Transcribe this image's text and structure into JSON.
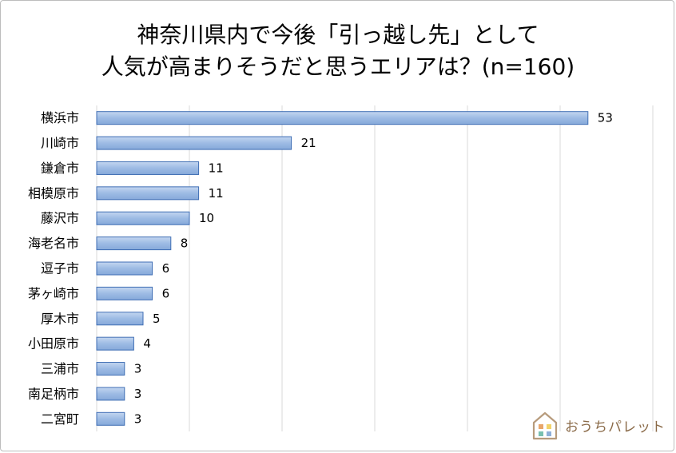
{
  "chart_data": {
    "type": "bar",
    "orientation": "horizontal",
    "title_line1": "神奈川県内で今後「引っ越し先」として",
    "title_line2": "人気が高まりそうだと思うエリアは？(n=160)",
    "categories": [
      "横浜市",
      "川崎市",
      "鎌倉市",
      "相模原市",
      "藤沢市",
      "海老名市",
      "逗子市",
      "茅ヶ崎市",
      "厚木市",
      "小田原市",
      "三浦市",
      "南足柄市",
      "二宮町"
    ],
    "values": [
      53,
      21,
      11,
      11,
      10,
      8,
      6,
      6,
      5,
      4,
      3,
      3,
      3
    ],
    "xlim": [
      0,
      60
    ],
    "grid": "vertical",
    "bar_color": "#9dbbe4",
    "bar_edge_color": "#3f6eb4"
  },
  "logo": {
    "text": "おうちパレット",
    "icon": "house-logo-icon"
  }
}
